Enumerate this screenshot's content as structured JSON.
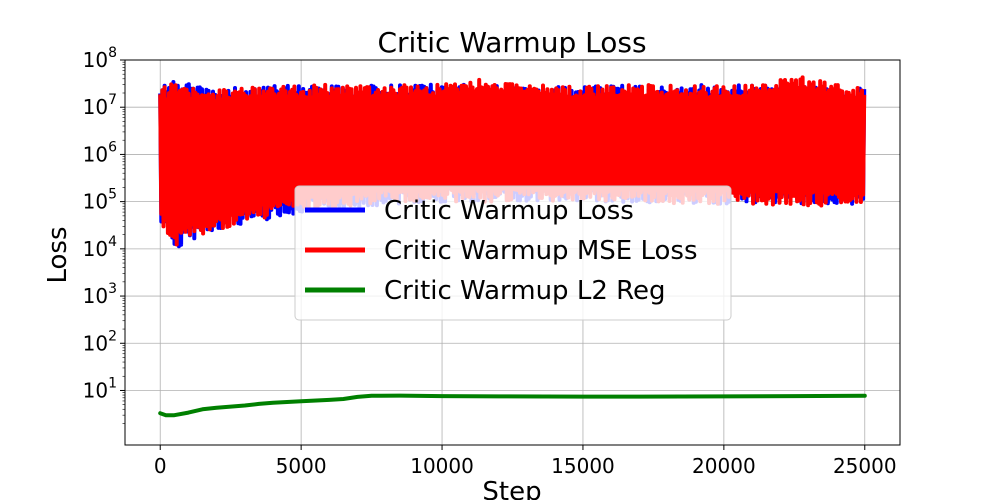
{
  "chart_data": {
    "type": "line",
    "title": "Critic Warmup Loss",
    "xlabel": "Step",
    "ylabel": "Loss",
    "x_scale": "linear",
    "y_scale": "log",
    "xlim": [
      -1250,
      26250
    ],
    "ylim": [
      0.7,
      100000000
    ],
    "x_ticks": [
      0,
      5000,
      10000,
      15000,
      20000,
      25000
    ],
    "x_tick_labels": [
      "0",
      "5000",
      "10000",
      "15000",
      "20000",
      "25000"
    ],
    "y_ticks": [
      10,
      100,
      1000,
      10000,
      100000,
      1000000,
      10000000,
      100000000
    ],
    "y_tick_labels": [
      {
        "base": "10",
        "exp": "1"
      },
      {
        "base": "10",
        "exp": "2"
      },
      {
        "base": "10",
        "exp": "3"
      },
      {
        "base": "10",
        "exp": "4"
      },
      {
        "base": "10",
        "exp": "5"
      },
      {
        "base": "10",
        "exp": "6"
      },
      {
        "base": "10",
        "exp": "7"
      },
      {
        "base": "10",
        "exp": "8"
      }
    ],
    "grid": true,
    "legend_position": "center",
    "series": [
      {
        "name": "Critic Warmup Loss",
        "color": "#0000ff",
        "note": "hidden beneath MSE Loss band",
        "band": [
          {
            "x": 0,
            "low": 40000,
            "high": 30000000
          },
          {
            "x": 500,
            "low": 10000,
            "high": 35000000
          },
          {
            "x": 2000,
            "low": 25000,
            "high": 25000000
          },
          {
            "x": 5000,
            "low": 60000,
            "high": 30000000
          },
          {
            "x": 10000,
            "low": 100000,
            "high": 30000000
          },
          {
            "x": 15000,
            "low": 100000,
            "high": 28000000
          },
          {
            "x": 20000,
            "low": 90000,
            "high": 30000000
          },
          {
            "x": 25000,
            "low": 90000,
            "high": 25000000
          }
        ]
      },
      {
        "name": "Critic Warmup MSE Loss",
        "color": "#ff0000",
        "band": [
          {
            "x": 0,
            "low": 40000,
            "high": 30000000
          },
          {
            "x": 250,
            "low": 18000,
            "high": 25000000
          },
          {
            "x": 500,
            "low": 10000,
            "high": 38000000
          },
          {
            "x": 1000,
            "low": 20000,
            "high": 28000000
          },
          {
            "x": 1500,
            "low": 20000,
            "high": 22000000
          },
          {
            "x": 2000,
            "low": 25000,
            "high": 24000000
          },
          {
            "x": 3000,
            "low": 35000,
            "high": 25000000
          },
          {
            "x": 4000,
            "low": 50000,
            "high": 30000000
          },
          {
            "x": 5000,
            "low": 60000,
            "high": 28000000
          },
          {
            "x": 6000,
            "low": 70000,
            "high": 30000000
          },
          {
            "x": 7000,
            "low": 80000,
            "high": 28000000
          },
          {
            "x": 8000,
            "low": 90000,
            "high": 30000000
          },
          {
            "x": 10000,
            "low": 100000,
            "high": 30000000
          },
          {
            "x": 11500,
            "low": 95000,
            "high": 40000000
          },
          {
            "x": 13000,
            "low": 100000,
            "high": 30000000
          },
          {
            "x": 15000,
            "low": 100000,
            "high": 28000000
          },
          {
            "x": 17000,
            "low": 95000,
            "high": 30000000
          },
          {
            "x": 19000,
            "low": 90000,
            "high": 28000000
          },
          {
            "x": 21000,
            "low": 85000,
            "high": 30000000
          },
          {
            "x": 22500,
            "low": 85000,
            "high": 48000000
          },
          {
            "x": 24000,
            "low": 80000,
            "high": 30000000
          },
          {
            "x": 25000,
            "low": 90000,
            "high": 25000000
          }
        ]
      },
      {
        "name": "Critic Warmup L2 Reg",
        "color": "#008000",
        "points": [
          {
            "x": 0,
            "y": 3.3
          },
          {
            "x": 200,
            "y": 3.0
          },
          {
            "x": 500,
            "y": 3.0
          },
          {
            "x": 1000,
            "y": 3.4
          },
          {
            "x": 1500,
            "y": 4.0
          },
          {
            "x": 2000,
            "y": 4.3
          },
          {
            "x": 3000,
            "y": 4.8
          },
          {
            "x": 3500,
            "y": 5.2
          },
          {
            "x": 4000,
            "y": 5.5
          },
          {
            "x": 5000,
            "y": 5.9
          },
          {
            "x": 6000,
            "y": 6.3
          },
          {
            "x": 6500,
            "y": 6.6
          },
          {
            "x": 7000,
            "y": 7.3
          },
          {
            "x": 7500,
            "y": 7.7
          },
          {
            "x": 8500,
            "y": 7.8
          },
          {
            "x": 10000,
            "y": 7.6
          },
          {
            "x": 12000,
            "y": 7.5
          },
          {
            "x": 15000,
            "y": 7.4
          },
          {
            "x": 17000,
            "y": 7.4
          },
          {
            "x": 20000,
            "y": 7.5
          },
          {
            "x": 22500,
            "y": 7.6
          },
          {
            "x": 25000,
            "y": 7.7
          }
        ]
      }
    ]
  }
}
